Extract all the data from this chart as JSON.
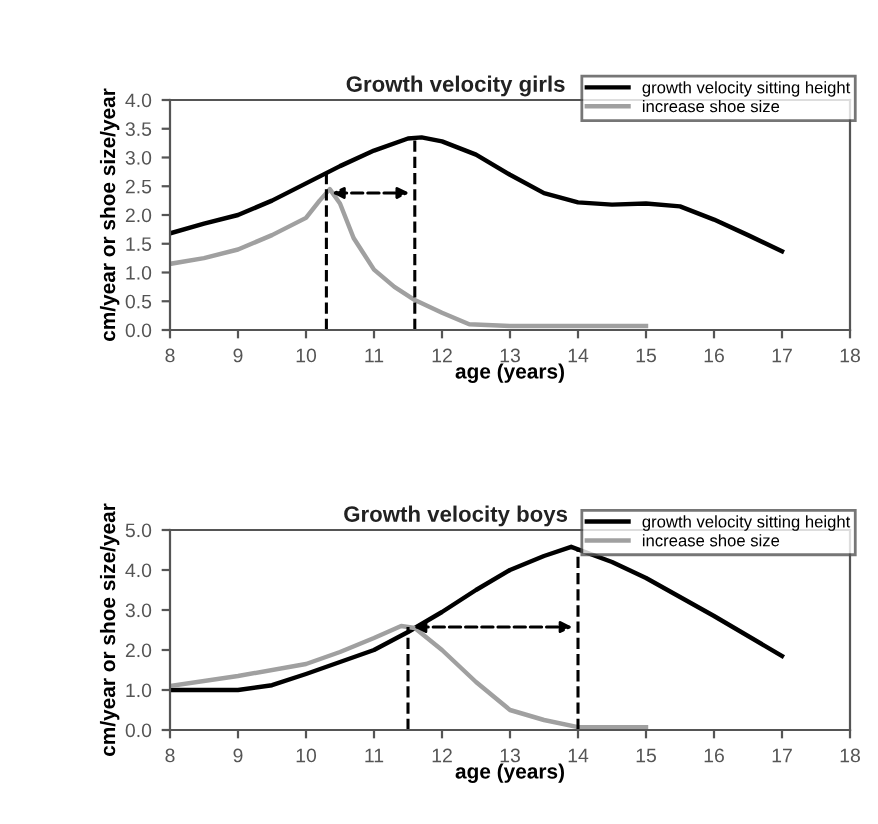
{
  "chart_data": [
    {
      "type": "line",
      "title": "Growth velocity girls",
      "xlabel": "age (years)",
      "ylabel": "cm/year or shoe size/year",
      "xlim": [
        8,
        18
      ],
      "xticks": [
        8,
        9,
        10,
        11,
        12,
        13,
        14,
        15,
        16,
        17,
        18
      ],
      "ylim": [
        0,
        4
      ],
      "yticks": [
        {
          "value": 0,
          "label": "0.0"
        },
        {
          "value": 0.5,
          "label": "0.5"
        },
        {
          "value": 1,
          "label": "1.0"
        },
        {
          "value": 1.5,
          "label": "1.5"
        },
        {
          "value": 2,
          "label": "2.0"
        },
        {
          "value": 2.5,
          "label": "2.5"
        },
        {
          "value": 3,
          "label": "3.0"
        },
        {
          "value": 3.5,
          "label": "3.5"
        },
        {
          "value": 4,
          "label": "4.0"
        }
      ],
      "grid": false,
      "legend": "top right",
      "marker": "none",
      "line_style": "solid",
      "ref_lines": [
        {
          "axis": "x",
          "value": 10.3,
          "line_style": "dashed",
          "color": "#000000"
        },
        {
          "axis": "x",
          "value": 11.6,
          "line_style": "dashed",
          "color": "#000000"
        }
      ],
      "series": [
        {
          "name": "growth velocity sitting height",
          "color": "#000000",
          "x": [
            8,
            8.5,
            9,
            9.5,
            10,
            10.5,
            11,
            11.5,
            11.7,
            12,
            12.5,
            13,
            13.5,
            14,
            14.5,
            15,
            15.5,
            16,
            16.5,
            17
          ],
          "values": [
            1.68,
            1.85,
            2.0,
            2.25,
            2.55,
            2.85,
            3.12,
            3.33,
            3.35,
            3.28,
            3.05,
            2.7,
            2.38,
            2.22,
            2.18,
            2.2,
            2.15,
            1.92,
            1.65,
            1.37
          ]
        },
        {
          "name": "increase shoe size",
          "color": "#a0a0a0",
          "x": [
            8,
            8.5,
            9,
            9.5,
            10,
            10.2,
            10.35,
            10.5,
            10.7,
            11,
            11.3,
            11.6,
            12,
            12.4,
            13,
            15
          ],
          "values": [
            1.15,
            1.25,
            1.4,
            1.65,
            1.95,
            2.25,
            2.45,
            2.2,
            1.6,
            1.05,
            0.75,
            0.52,
            0.3,
            0.1,
            0.07,
            0.07
          ]
        }
      ]
    },
    {
      "type": "line",
      "title": "Growth velocity boys",
      "xlabel": "age (years)",
      "ylabel": "cm/year or shoe size/year",
      "xlim": [
        8,
        18
      ],
      "xticks": [
        8,
        9,
        10,
        11,
        12,
        13,
        14,
        15,
        16,
        17,
        18
      ],
      "ylim": [
        0,
        5
      ],
      "yticks": [
        {
          "value": 0,
          "label": "0.0"
        },
        {
          "value": 1,
          "label": "1.0"
        },
        {
          "value": 2,
          "label": "2.0"
        },
        {
          "value": 3,
          "label": "3.0"
        },
        {
          "value": 4,
          "label": "4.0"
        },
        {
          "value": 5,
          "label": "5.0"
        }
      ],
      "grid": false,
      "legend": "top right",
      "marker": "none",
      "line_style": "solid",
      "ref_lines": [
        {
          "axis": "x",
          "value": 11.5,
          "line_style": "dashed",
          "color": "#000000"
        },
        {
          "axis": "x",
          "value": 14,
          "line_style": "dashed",
          "color": "#000000"
        }
      ],
      "series": [
        {
          "name": "growth velocity sitting height",
          "color": "#000000",
          "x": [
            8,
            9,
            9.5,
            10,
            10.5,
            11,
            11.5,
            12,
            12.5,
            13,
            13.5,
            13.9,
            14.5,
            15,
            16,
            17
          ],
          "values": [
            1.0,
            1.0,
            1.12,
            1.4,
            1.7,
            2.0,
            2.45,
            2.95,
            3.5,
            4.0,
            4.35,
            4.58,
            4.2,
            3.8,
            2.85,
            1.85
          ]
        },
        {
          "name": "increase shoe size",
          "color": "#a0a0a0",
          "x": [
            8,
            9,
            10,
            10.5,
            11,
            11.4,
            11.6,
            12,
            12.5,
            13,
            13.5,
            14,
            15
          ],
          "values": [
            1.1,
            1.35,
            1.65,
            1.95,
            2.3,
            2.6,
            2.55,
            2.0,
            1.2,
            0.5,
            0.25,
            0.07,
            0.07
          ]
        }
      ]
    }
  ]
}
